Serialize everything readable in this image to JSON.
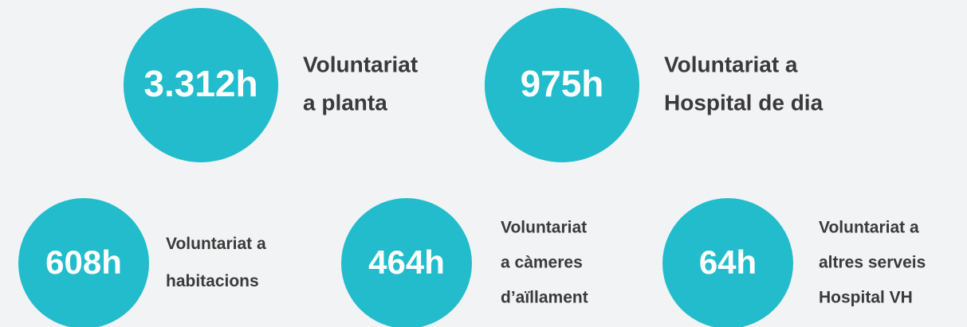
{
  "items": [
    {
      "value": "3.312h",
      "label": [
        "Voluntariat",
        "a planta"
      ]
    },
    {
      "value": "975h",
      "label": [
        "Voluntariat a",
        "Hospital de dia"
      ]
    },
    {
      "value": "608h",
      "label": [
        "Voluntariat a",
        "habitacions"
      ]
    },
    {
      "value": "464h",
      "label": [
        "Voluntariat",
        "a càmeres",
        "d’aïllament"
      ]
    },
    {
      "value": "64h",
      "label": [
        "Voluntariat a",
        "altres serveis",
        "Hospital VH"
      ]
    }
  ]
}
